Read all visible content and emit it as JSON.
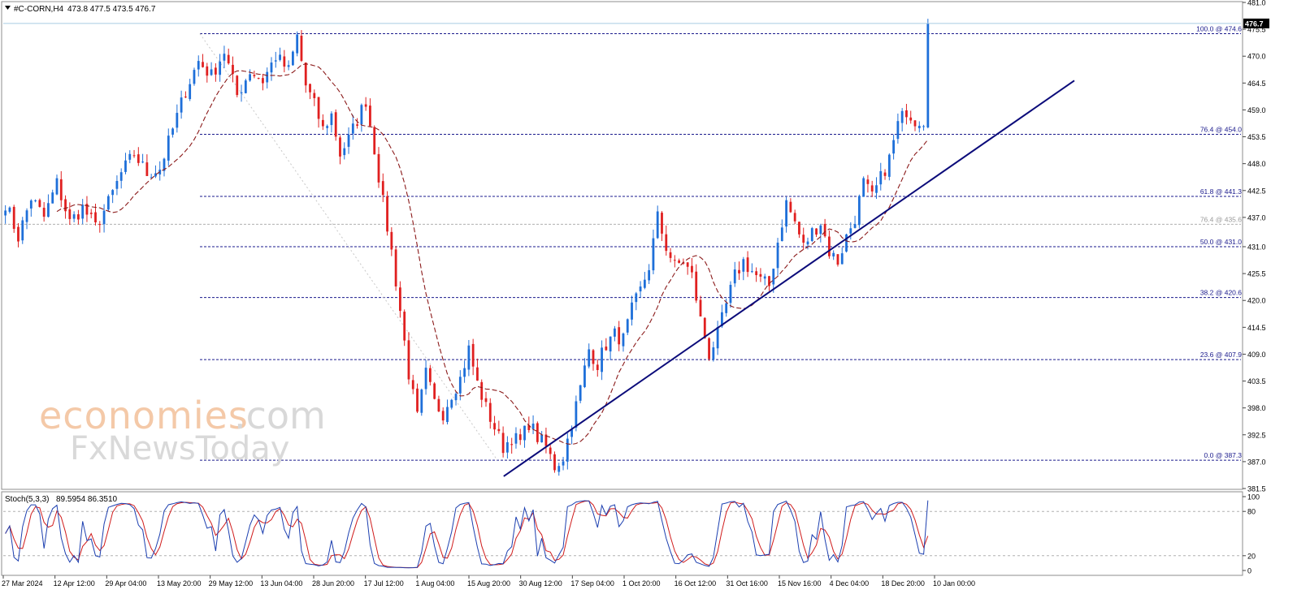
{
  "header": {
    "symbol": "#C-CORN,H4",
    "ohlc": "473.8 477.5 473.5 476.7"
  },
  "watermark": {
    "brand": "economies",
    "brand_suffix": ".com",
    "sub": "FxNewsToday"
  },
  "chart_data": [
    {
      "type": "candlestick",
      "symbol": "#C-CORN",
      "timeframe": "H4",
      "ylim": [
        381.5,
        481.0
      ],
      "y_ticks": [
        "481.0",
        "475.5",
        "470.0",
        "464.5",
        "459.0",
        "453.5",
        "448.0",
        "442.5",
        "437.0",
        "431.0",
        "425.5",
        "420.0",
        "414.5",
        "409.0",
        "403.5",
        "398.0",
        "392.5",
        "387.0",
        "381.5"
      ],
      "x_ticks": [
        "27 Mar 2024",
        "12 Apr 12:00",
        "29 Apr 04:00",
        "13 May 20:00",
        "29 May 12:00",
        "13 Jun 04:00",
        "28 Jun 20:00",
        "17 Jul 12:00",
        "1 Aug 04:00",
        "15 Aug 20:00",
        "30 Aug 12:00",
        "17 Sep 04:00",
        "1 Oct 20:00",
        "16 Oct 12:00",
        "31 Oct 16:00",
        "15 Nov 16:00",
        "4 Dec 04:00",
        "18 Dec 20:00",
        "10 Jan 00:00"
      ],
      "last_price": "476.7",
      "close_path": [
        [
          0,
          440
        ],
        [
          3,
          433
        ],
        [
          6,
          441
        ],
        [
          9,
          437
        ],
        [
          12,
          444
        ],
        [
          15,
          436
        ],
        [
          18,
          439
        ],
        [
          21,
          435
        ],
        [
          24,
          440
        ],
        [
          27,
          446
        ],
        [
          30,
          450
        ],
        [
          33,
          446
        ],
        [
          36,
          447
        ],
        [
          39,
          455
        ],
        [
          42,
          463
        ],
        [
          45,
          469
        ],
        [
          48,
          466
        ],
        [
          51,
          471
        ],
        [
          54,
          462
        ],
        [
          57,
          467
        ],
        [
          60,
          465
        ],
        [
          63,
          470
        ],
        [
          66,
          467
        ],
        [
          68,
          474
        ],
        [
          70,
          464
        ],
        [
          72,
          460
        ],
        [
          74,
          455
        ],
        [
          76,
          458
        ],
        [
          78,
          450
        ],
        [
          80,
          453
        ],
        [
          82,
          457
        ],
        [
          84,
          461
        ],
        [
          86,
          451
        ],
        [
          88,
          440
        ],
        [
          90,
          430
        ],
        [
          92,
          418
        ],
        [
          94,
          405
        ],
        [
          96,
          396
        ],
        [
          98,
          405
        ],
        [
          100,
          399
        ],
        [
          102,
          397
        ],
        [
          104,
          401
        ],
        [
          106,
          404
        ],
        [
          108,
          410
        ],
        [
          110,
          403
        ],
        [
          112,
          398
        ],
        [
          114,
          394
        ],
        [
          116,
          390
        ],
        [
          118,
          392
        ],
        [
          120,
          391
        ],
        [
          122,
          395
        ],
        [
          124,
          392
        ],
        [
          126,
          390
        ],
        [
          128,
          386
        ],
        [
          130,
          388
        ],
        [
          132,
          395
        ],
        [
          134,
          402
        ],
        [
          136,
          410
        ],
        [
          138,
          407
        ],
        [
          140,
          411
        ],
        [
          142,
          413
        ],
        [
          144,
          412
        ],
        [
          146,
          418
        ],
        [
          148,
          422
        ],
        [
          150,
          427
        ],
        [
          152,
          437
        ],
        [
          154,
          431
        ],
        [
          156,
          427
        ],
        [
          158,
          428
        ],
        [
          160,
          425
        ],
        [
          162,
          416
        ],
        [
          164,
          409
        ],
        [
          166,
          413
        ],
        [
          168,
          419
        ],
        [
          170,
          425
        ],
        [
          172,
          428
        ],
        [
          174,
          426
        ],
        [
          176,
          424
        ],
        [
          178,
          423
        ],
        [
          180,
          432
        ],
        [
          182,
          440
        ],
        [
          184,
          436
        ],
        [
          186,
          431
        ],
        [
          188,
          434
        ],
        [
          190,
          436
        ],
        [
          192,
          430
        ],
        [
          194,
          428
        ],
        [
          196,
          433
        ],
        [
          198,
          437
        ],
        [
          200,
          444
        ],
        [
          202,
          441
        ],
        [
          204,
          445
        ],
        [
          206,
          449
        ],
        [
          208,
          456
        ],
        [
          210,
          459
        ],
        [
          212,
          457
        ],
        [
          214,
          457
        ],
        [
          215,
          476.7
        ]
      ],
      "moving_average": "dashed dark red",
      "fibonacci_levels": [
        {
          "label": "100.0 @ 474.6",
          "value": 474.6
        },
        {
          "label": "76.4 @ 454.0",
          "value": 454.0
        },
        {
          "label": "61.8 @ 441.3",
          "value": 441.3
        },
        {
          "label": "76.4 @ 435.6",
          "value": 435.6
        },
        {
          "label": "50.0 @ 431.0",
          "value": 431.0
        },
        {
          "label": "38.2 @ 420.6",
          "value": 420.6
        },
        {
          "label": "23.6 @ 407.9",
          "value": 407.9
        },
        {
          "label": "0.0 @ 387.3",
          "value": 387.3
        }
      ],
      "trendline": {
        "from": [
          110,
          384.0
        ],
        "to": [
          237,
          465.0
        ],
        "color": "#0b0b7a"
      }
    },
    {
      "type": "line",
      "name": "Stoch(5,3,3)",
      "values_text": "89.5954 86.3510",
      "ylim": [
        0,
        100
      ],
      "y_ticks": [
        "100",
        "80",
        "20",
        "0"
      ],
      "levels": [
        80,
        20
      ]
    }
  ],
  "colors": {
    "bull": "#1e6fd9",
    "bear": "#e02020",
    "fib": "#1a1a8c",
    "trend": "#0b0b7a",
    "ma": "#8b1a1a",
    "stoch_main": "#1c3fb0",
    "stoch_signal": "#d01c1c"
  }
}
